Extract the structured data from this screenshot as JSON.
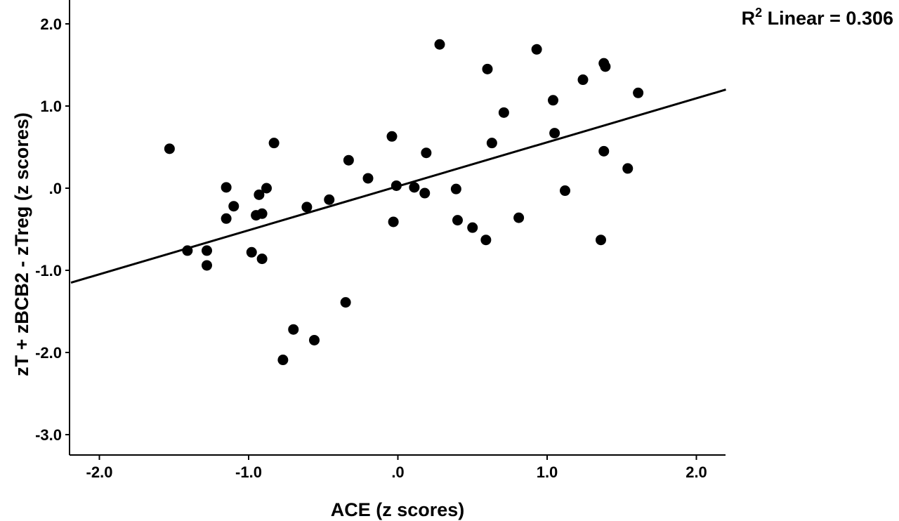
{
  "chart_data": {
    "type": "scatter",
    "xlabel": "ACE (z scores)",
    "ylabel": "zT + zBCB2 - zTreg (z scores)",
    "annotation": {
      "r_label": "R",
      "r_superscript": "2",
      "text": " Linear = 0.306"
    },
    "xlim": [
      -2.2,
      2.2
    ],
    "ylim": [
      -3.2,
      2.3
    ],
    "x_ticks": [
      {
        "value": -2.0,
        "label": "-2.0"
      },
      {
        "value": -1.0,
        "label": "-1.0"
      },
      {
        "value": 0.0,
        "label": ".0"
      },
      {
        "value": 1.0,
        "label": "1.0"
      },
      {
        "value": 2.0,
        "label": "2.0"
      }
    ],
    "y_ticks": [
      {
        "value": 2.0,
        "label": "2.0"
      },
      {
        "value": 1.0,
        "label": "1.0"
      },
      {
        "value": 0.0,
        "label": ".0"
      },
      {
        "value": -1.0,
        "label": "-1.0"
      },
      {
        "value": -2.0,
        "label": "-2.0"
      },
      {
        "value": -3.0,
        "label": "-3.0"
      }
    ],
    "grid": false,
    "marker_color": "#000000",
    "fit_line": {
      "label": "Linear",
      "x": [
        -2.2,
        2.2
      ],
      "y": [
        -1.15,
        1.2
      ]
    },
    "points": [
      {
        "x": -1.53,
        "y": 0.48
      },
      {
        "x": -1.41,
        "y": -0.76
      },
      {
        "x": -1.28,
        "y": -0.76
      },
      {
        "x": -1.28,
        "y": -0.94
      },
      {
        "x": -1.15,
        "y": 0.01
      },
      {
        "x": -1.15,
        "y": -0.37
      },
      {
        "x": -1.1,
        "y": -0.22
      },
      {
        "x": -0.98,
        "y": -0.78
      },
      {
        "x": -0.95,
        "y": -0.33
      },
      {
        "x": -0.93,
        "y": -0.08
      },
      {
        "x": -0.91,
        "y": -0.31
      },
      {
        "x": -0.91,
        "y": -0.86
      },
      {
        "x": -0.88,
        "y": 0.0
      },
      {
        "x": -0.83,
        "y": 0.55
      },
      {
        "x": -0.77,
        "y": -2.09
      },
      {
        "x": -0.7,
        "y": -1.72
      },
      {
        "x": -0.61,
        "y": -0.23
      },
      {
        "x": -0.56,
        "y": -1.85
      },
      {
        "x": -0.46,
        "y": -0.14
      },
      {
        "x": -0.35,
        "y": -1.39
      },
      {
        "x": -0.33,
        "y": 0.34
      },
      {
        "x": -0.2,
        "y": 0.12
      },
      {
        "x": -0.04,
        "y": 0.63
      },
      {
        "x": -0.03,
        "y": -0.41
      },
      {
        "x": -0.01,
        "y": 0.03
      },
      {
        "x": 0.11,
        "y": 0.01
      },
      {
        "x": 0.18,
        "y": -0.06
      },
      {
        "x": 0.19,
        "y": 0.43
      },
      {
        "x": 0.28,
        "y": 1.75
      },
      {
        "x": 0.39,
        "y": -0.01
      },
      {
        "x": 0.4,
        "y": -0.39
      },
      {
        "x": 0.5,
        "y": -0.48
      },
      {
        "x": 0.59,
        "y": -0.63
      },
      {
        "x": 0.6,
        "y": 1.45
      },
      {
        "x": 0.63,
        "y": 0.55
      },
      {
        "x": 0.71,
        "y": 0.92
      },
      {
        "x": 0.81,
        "y": -0.36
      },
      {
        "x": 0.93,
        "y": 1.69
      },
      {
        "x": 1.04,
        "y": 1.07
      },
      {
        "x": 1.05,
        "y": 0.67
      },
      {
        "x": 1.12,
        "y": -0.03
      },
      {
        "x": 1.24,
        "y": 1.32
      },
      {
        "x": 1.36,
        "y": -0.63
      },
      {
        "x": 1.38,
        "y": 0.45
      },
      {
        "x": 1.38,
        "y": 1.52
      },
      {
        "x": 1.39,
        "y": 1.48
      },
      {
        "x": 1.54,
        "y": 0.24
      },
      {
        "x": 1.61,
        "y": 1.16
      }
    ]
  }
}
